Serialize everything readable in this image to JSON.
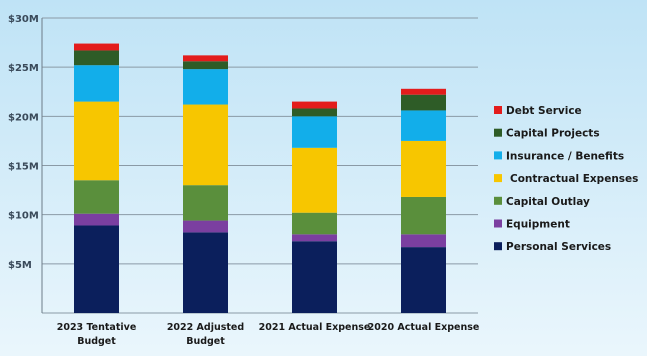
{
  "chart_data": {
    "type": "bar",
    "stacked": true,
    "categories": [
      [
        "2023 Tentative",
        "Budget"
      ],
      [
        "2022 Adjusted",
        "Budget"
      ],
      [
        "2021 Actual Expense"
      ],
      [
        "2020 Actual Expense"
      ]
    ],
    "series": [
      {
        "name": "Personal Services",
        "color": "#0b1f5c",
        "values": [
          8.9,
          8.2,
          7.3,
          6.7
        ]
      },
      {
        "name": "Equipment",
        "color": "#7b3fa0",
        "values": [
          1.2,
          1.2,
          0.7,
          1.3
        ]
      },
      {
        "name": "Capital Outlay",
        "color": "#5a8f3c",
        "values": [
          3.4,
          3.6,
          2.2,
          3.8
        ]
      },
      {
        "name": "Contractual Expenses",
        "color": "#f7c600",
        "values": [
          8.0,
          8.2,
          6.6,
          5.7
        ]
      },
      {
        "name": "Insurance / Benefits",
        "color": "#12aeea",
        "values": [
          3.7,
          3.6,
          3.2,
          3.1
        ]
      },
      {
        "name": "Capital Projects",
        "color": "#2e5c27",
        "values": [
          1.5,
          0.8,
          0.8,
          1.6
        ]
      },
      {
        "name": "Debt Service",
        "color": "#e31c1c",
        "values": [
          0.7,
          0.6,
          0.7,
          0.6
        ]
      }
    ],
    "y_ticks": [
      {
        "value": 0,
        "label": ""
      },
      {
        "value": 5,
        "label": "$5M"
      },
      {
        "value": 10,
        "label": "$10M"
      },
      {
        "value": 15,
        "label": "$15M"
      },
      {
        "value": 20,
        "label": "$20M"
      },
      {
        "value": 25,
        "label": "$25M"
      },
      {
        "value": 30,
        "label": "$30M"
      }
    ],
    "ylim": [
      0,
      30
    ],
    "grid": true,
    "legend_position": "right",
    "legend_order": [
      "Debt Service",
      "Capital Projects",
      "Insurance / Benefits",
      "Contractual Expenses",
      "Capital Outlay",
      "Equipment",
      "Personal Services"
    ]
  }
}
